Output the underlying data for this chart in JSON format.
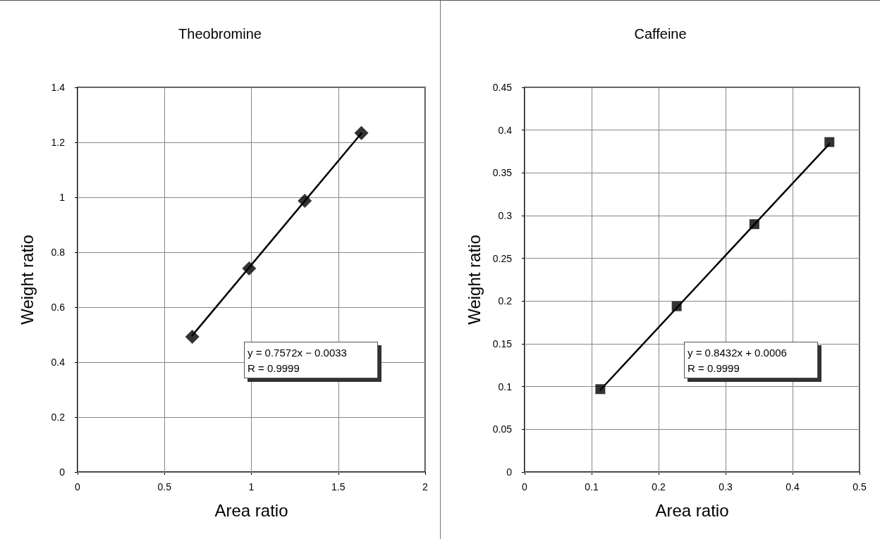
{
  "chart_data": [
    {
      "type": "scatter",
      "title": "Theobromine",
      "xlabel": "Area ratio",
      "ylabel": "Weight ratio",
      "xlim": [
        0,
        2
      ],
      "xticks": [
        0,
        0.5,
        1,
        1.5,
        2
      ],
      "ylim": [
        0,
        1.4
      ],
      "yticks": [
        0,
        0.2,
        0.4,
        0.6,
        0.8,
        1,
        1.2,
        1.4
      ],
      "grid": true,
      "series": [
        {
          "type": "scatter",
          "color": "#000000",
          "marker": "diamond",
          "x": [
            0.66,
            0.987,
            1.307,
            1.633
          ],
          "values": [
            0.492,
            0.741,
            0.987,
            1.234
          ]
        },
        {
          "type": "line",
          "color": "#000000",
          "line_style": "solid",
          "marker": "none",
          "x": [
            0.66,
            1.633
          ],
          "values": [
            0.497,
            1.233
          ]
        }
      ],
      "annotations": [
        "y = 0.7572x − 0.0033\nR = 0.9999"
      ]
    },
    {
      "type": "scatter",
      "title": "Caffeine",
      "xlabel": "Area ratio",
      "ylabel": "Weight ratio",
      "xlim": [
        0,
        0.5
      ],
      "xticks": [
        0,
        0.1,
        0.2,
        0.3,
        0.4,
        0.5
      ],
      "ylim": [
        0,
        0.45
      ],
      "yticks": [
        0,
        0.05,
        0.1,
        0.15,
        0.2,
        0.25,
        0.3,
        0.35,
        0.4,
        0.45
      ],
      "grid": true,
      "marker": "square",
      "series": [
        {
          "type": "scatter",
          "color": "#000000",
          "x": [
            0.113,
            0.227,
            0.343,
            0.455
          ],
          "values": [
            0.097,
            0.194,
            0.29,
            0.386
          ]
        },
        {
          "type": "line",
          "color": "#000000",
          "line_style": "solid",
          "marker": "none",
          "x": [
            0.113,
            0.455
          ],
          "values": [
            0.096,
            0.384
          ]
        }
      ],
      "annotations": [
        "y = 0.8432x + 0.0006\nR = 0.9999"
      ]
    }
  ]
}
